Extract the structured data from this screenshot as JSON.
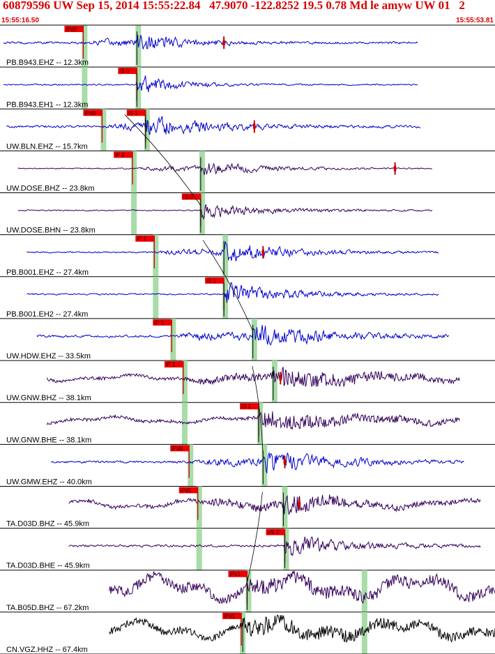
{
  "header": {
    "title": "60879596 UW Sep 15, 2014 15:55:22.84   47.9070 -122.8252 19.5 0.78 Md le amyw UW 01   2",
    "time_start": "15:55:16.50",
    "time_end": "15:55:53.81"
  },
  "colors": {
    "header_text": "#d80000",
    "trace_blue": "#0000cc",
    "trace_purple": "#33005a",
    "trace_black": "#000000",
    "pick_box": "#ee0000",
    "pick_line": "#cc0000",
    "travel_window": "#a8dca8",
    "separator": "#000000"
  },
  "chart_data": {
    "type": "line",
    "title": "60879596 UW Sep 15, 2014 15:55:22.84   47.9070 -122.8252 19.5 0.78 Md le amyw UW 01   2",
    "x_range": [
      "15:55:16.50",
      "15:55:53.81"
    ],
    "y_axis": "traces ordered by epicentral distance",
    "grid": false,
    "traces": [
      {
        "label": "PB.B943.EHZ -- 12.3km",
        "color": "blue",
        "start_s": 0.0,
        "end_s": 28.6,
        "quiet_amp": 0.08,
        "pick_s": 5.5,
        "pick_label": "iPd0",
        "arrival_s": 9.2,
        "peak_amp": 0.75,
        "decay_s": 3.0,
        "noise_type": "white",
        "windows_s": [
          5.5,
          9.2
        ],
        "extra_pick_s": 15.2
      },
      {
        "label": "PB.B943.EH1 -- 12.3km",
        "color": "blue",
        "start_s": 0.0,
        "end_s": 28.6,
        "quiet_amp": 0.05,
        "pick_s": 9.2,
        "pick_label": "iS 0",
        "arrival_s": 9.2,
        "peak_amp": 0.8,
        "decay_s": 2.5,
        "noise_type": "white",
        "windows_s": [
          5.5,
          9.2
        ]
      },
      {
        "label": "UW.BLN.EHZ -- 15.7km",
        "color": "blue",
        "start_s": 0.2,
        "end_s": 28.8,
        "quiet_amp": 0.08,
        "pick_s": 6.8,
        "pick_label": "iPd0",
        "arrival_s": 9.8,
        "peak_amp": 0.8,
        "decay_s": 4.5,
        "noise_type": "white",
        "windows_s": [
          6.8,
          9.8
        ],
        "pick2_s": 9.8,
        "pick2_label": "iS 1",
        "extra_pick_s": 17.3
      },
      {
        "label": "UW.DOSE.BHZ -- 23.8km",
        "color": "purple",
        "start_s": 1.0,
        "end_s": 29.6,
        "quiet_amp": 0.04,
        "pick_s": 8.9,
        "pick_label": "iP 2",
        "arrival_s": 13.6,
        "peak_amp": 0.55,
        "decay_s": 4.0,
        "noise_type": "white",
        "windows_s": [
          8.9,
          13.6
        ],
        "extra_pick_s": 27.0
      },
      {
        "label": "UW.DOSE.BHN -- 23.8km",
        "color": "purple",
        "start_s": 1.0,
        "end_s": 29.6,
        "quiet_amp": 0.04,
        "pick_s": 13.6,
        "pick_label": "iS 0",
        "arrival_s": 13.6,
        "peak_amp": 0.6,
        "decay_s": 4.5,
        "noise_type": "white",
        "windows_s": [
          8.9,
          13.6
        ]
      },
      {
        "label": "PB.B001.EHZ -- 27.4km",
        "color": "blue",
        "start_s": 1.6,
        "end_s": 30.0,
        "quiet_amp": 0.05,
        "pick_s": 10.4,
        "pick_label": "iP 1",
        "arrival_s": 15.2,
        "peak_amp": 0.8,
        "decay_s": 4.0,
        "noise_type": "white",
        "windows_s": [
          10.4,
          15.2
        ],
        "extra_pick_s": 17.9
      },
      {
        "label": "PB.B001.EH2 -- 27.4km",
        "color": "blue",
        "start_s": 1.6,
        "end_s": 30.0,
        "quiet_amp": 0.05,
        "pick_s": 15.2,
        "pick_label": "iS 1",
        "arrival_s": 15.2,
        "peak_amp": 0.8,
        "decay_s": 4.0,
        "noise_type": "white",
        "windows_s": [
          10.4,
          15.2
        ]
      },
      {
        "label": "UW.HDW.EHZ -- 33.5km",
        "color": "blue",
        "start_s": 2.3,
        "end_s": 30.7,
        "quiet_amp": 0.08,
        "pick_s": 11.6,
        "pick_label": "iP 1",
        "arrival_s": 17.2,
        "peak_amp": 0.85,
        "decay_s": 5.0,
        "noise_type": "white",
        "windows_s": [
          11.6,
          17.2
        ]
      },
      {
        "label": "UW.GNW.BHZ -- 38.1km",
        "color": "purple",
        "start_s": 3.0,
        "end_s": 31.5,
        "quiet_amp": 0.12,
        "pick_s": 12.4,
        "pick_label": "iP 1",
        "arrival_s": 18.6,
        "peak_amp": 0.8,
        "decay_s": 7.0,
        "noise_type": "wavy",
        "windows_s": [
          12.4,
          18.6
        ],
        "extra_pick_s": 19.1
      },
      {
        "label": "UW.GNW.BHE -- 38.1km",
        "color": "purple",
        "start_s": 3.0,
        "end_s": 31.5,
        "quiet_amp": 0.12,
        "pick_s": 17.6,
        "pick_label": "iS 1",
        "arrival_s": 17.6,
        "peak_amp": 0.8,
        "decay_s": 7.0,
        "noise_type": "wavy",
        "windows_s": [
          12.4,
          17.6
        ]
      },
      {
        "label": "UW.GMW.EHZ -- 40.0km",
        "color": "blue",
        "start_s": 3.3,
        "end_s": 31.8,
        "quiet_amp": 0.08,
        "pick_s": 12.8,
        "pick_label": "iPd0",
        "arrival_s": 17.9,
        "peak_amp": 0.85,
        "decay_s": 5.0,
        "noise_type": "white",
        "windows_s": [
          12.8,
          17.9
        ],
        "extra_pick_s": 19.4
      },
      {
        "label": "TA.D03D.BHZ -- 45.9km",
        "color": "purple",
        "start_s": 4.5,
        "end_s": 32.9,
        "quiet_amp": 0.15,
        "pick_s": 13.4,
        "pick_label": "iPd1",
        "arrival_s": 19.3,
        "peak_amp": 0.85,
        "decay_s": 4.0,
        "noise_type": "wavy",
        "windows_s": [
          13.4,
          19.3
        ],
        "extra_pick_s": 20.4
      },
      {
        "label": "TA.D03D.BHE -- 45.9km",
        "color": "purple",
        "start_s": 4.5,
        "end_s": 32.9,
        "quiet_amp": 0.08,
        "pick_s": 19.4,
        "pick_label": "eS 2",
        "arrival_s": 19.4,
        "peak_amp": 0.85,
        "decay_s": 4.0,
        "noise_type": "white",
        "windows_s": [
          13.4,
          19.4
        ]
      },
      {
        "label": "TA.B05D.BHZ -- 67.2km",
        "color": "purple",
        "start_s": 7.3,
        "end_s": 35.8,
        "quiet_amp": 0.4,
        "pick_s": 16.8,
        "pick_label": "iPc1",
        "arrival_s": 16.8,
        "peak_amp": 0.7,
        "decay_s": 6.0,
        "noise_type": "wavy",
        "windows_s": [
          16.8,
          24.8
        ]
      },
      {
        "label": "CN.VGZ.HHZ -- 67.4km",
        "color": "black",
        "start_s": 7.3,
        "end_s": 35.8,
        "quiet_amp": 0.3,
        "pick_s": 16.4,
        "pick_label": "iPd1",
        "arrival_s": 16.5,
        "peak_amp": 0.75,
        "decay_s": 8.0,
        "noise_type": "wavy",
        "windows_s": [
          16.4,
          24.8
        ]
      }
    ]
  }
}
